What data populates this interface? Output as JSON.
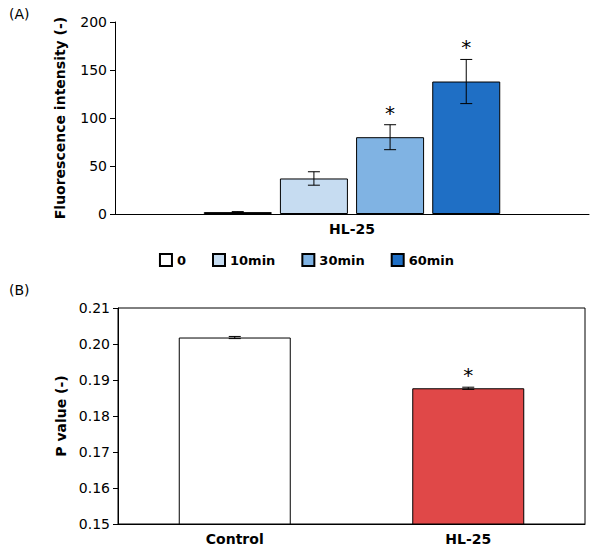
{
  "chart_data": [
    {
      "type": "bar",
      "title": "(A)",
      "y_label": "Fluorescence intensity (-)",
      "categories": [
        "HL-25"
      ],
      "series": [
        {
          "name": "0",
          "color": "#ffffff",
          "values": [
            2
          ],
          "errors": [
            0.5
          ]
        },
        {
          "name": "10min",
          "color": "#c6dcf1",
          "values": [
            37
          ],
          "errors": [
            7
          ]
        },
        {
          "name": "30min",
          "color": "#80b3e3",
          "values": [
            80
          ],
          "errors": [
            13
          ],
          "annotations": [
            "*"
          ]
        },
        {
          "name": "60min",
          "color": "#1f6fc5",
          "values": [
            138
          ],
          "errors": [
            23
          ],
          "annotations": [
            "*"
          ]
        }
      ],
      "ylim": [
        0,
        200
      ],
      "yticks": [
        0,
        50,
        100,
        150,
        200
      ],
      "grid": false,
      "legend": "bottom"
    },
    {
      "type": "bar",
      "title": "(B)",
      "y_label": "P value (-)",
      "categories": [
        "Control",
        "HL-25"
      ],
      "values": [
        0.2018,
        0.1877
      ],
      "errors": [
        0.0003,
        0.0003
      ],
      "colors": [
        "#ffffff",
        "#e04848"
      ],
      "annotations": [
        null,
        "*"
      ],
      "ylim": [
        0.15,
        0.21
      ],
      "yticks": [
        0.15,
        0.16,
        0.17,
        0.18,
        0.19,
        {
          "value": 0.2,
          "label": "0.20"
        },
        0.21
      ],
      "grid": false
    }
  ]
}
